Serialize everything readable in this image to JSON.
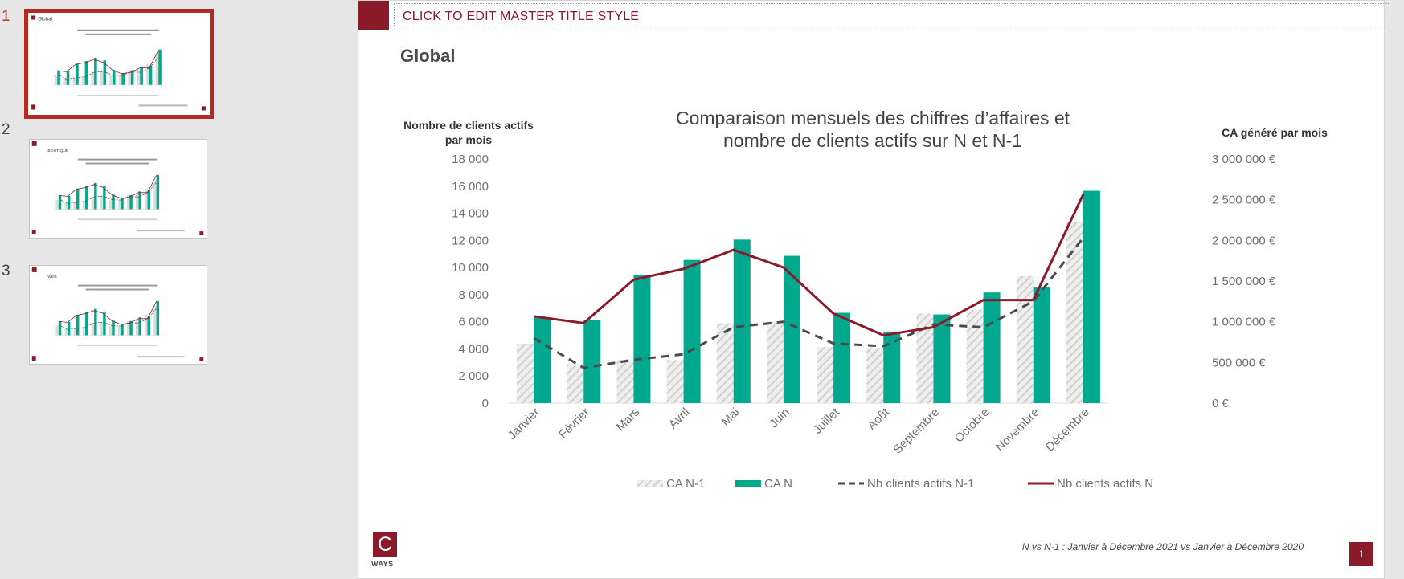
{
  "slides_panel": {
    "slides": [
      {
        "number": "1",
        "label": "Global"
      },
      {
        "number": "2",
        "label": "BOUTIQUE"
      },
      {
        "number": "3",
        "label": "WEB"
      }
    ]
  },
  "slide": {
    "master_title": "CLICK TO EDIT MASTER TITLE STYLE",
    "subtitle": "Global",
    "logo_letter": "C",
    "logo_word": "WAYS",
    "footer_note": "N vs N-1 : Janvier à Décembre 2021 vs Janvier à Décembre 2020",
    "page_number": "1"
  },
  "colors": {
    "brand": "#8b1a2b",
    "ca_n": "#00a88e",
    "ca_n1": "#d9d9d9",
    "clients_n1": "#4a4a4a",
    "clients_n": "#8b1a2b"
  },
  "chart_data": {
    "type": "bar",
    "title": "Comparaison mensuels des chiffres d’affaires et nombre de clients actifs sur N et N-1",
    "title_lines": [
      "Comparaison mensuels des chiffres d’affaires et",
      "nombre de clients actifs sur N et N-1"
    ],
    "ylabel_left_lines": [
      "Nombre de clients actifs",
      "par mois"
    ],
    "ylabel_right": "CA généré par mois",
    "categories": [
      "Janvier",
      "Février",
      "Mars",
      "Avril",
      "Mai",
      "Juin",
      "Juillet",
      "Août",
      "Septembre",
      "Octobre",
      "Novembre",
      "Décembre"
    ],
    "y_left": {
      "min": 0,
      "max": 18000,
      "ticks": [
        "18 000",
        "16 000",
        "14 000",
        "12 000",
        "10 000",
        "8 000",
        "6 000",
        "4 000",
        "2 000",
        "0"
      ]
    },
    "y_right": {
      "min": 0,
      "max": 3000000,
      "ticks": [
        "3 000 000 €",
        "2 500 000 €",
        "2 000 000 €",
        "1 500 000 €",
        "1 000 000 €",
        "500 000 €",
        "0 €"
      ]
    },
    "series": [
      {
        "name": "CA N-1",
        "type": "bar",
        "axis": "right",
        "values": [
          730000,
          480000,
          530000,
          530000,
          980000,
          1000000,
          690000,
          680000,
          1100000,
          1150000,
          1560000,
          2230000
        ]
      },
      {
        "name": "CA N",
        "type": "bar",
        "axis": "right",
        "values": [
          1050000,
          1020000,
          1570000,
          1760000,
          2010000,
          1810000,
          1110000,
          880000,
          1090000,
          1360000,
          1420000,
          2610000
        ]
      },
      {
        "name": "Nb clients actifs N-1",
        "type": "line",
        "axis": "left",
        "values": [
          4800,
          2600,
          3200,
          3600,
          5600,
          6000,
          4400,
          4200,
          5800,
          5600,
          7500,
          12200
        ]
      },
      {
        "name": "Nb clients actifs N",
        "type": "line",
        "axis": "left",
        "values": [
          6400,
          5900,
          9100,
          9900,
          11300,
          10000,
          6600,
          5000,
          5600,
          7600,
          7600,
          15400
        ]
      }
    ],
    "legend": [
      "CA N-1",
      "CA N",
      "Nb clients actifs N-1",
      "Nb clients actifs N"
    ],
    "legend_position": "bottom",
    "grid": false
  }
}
